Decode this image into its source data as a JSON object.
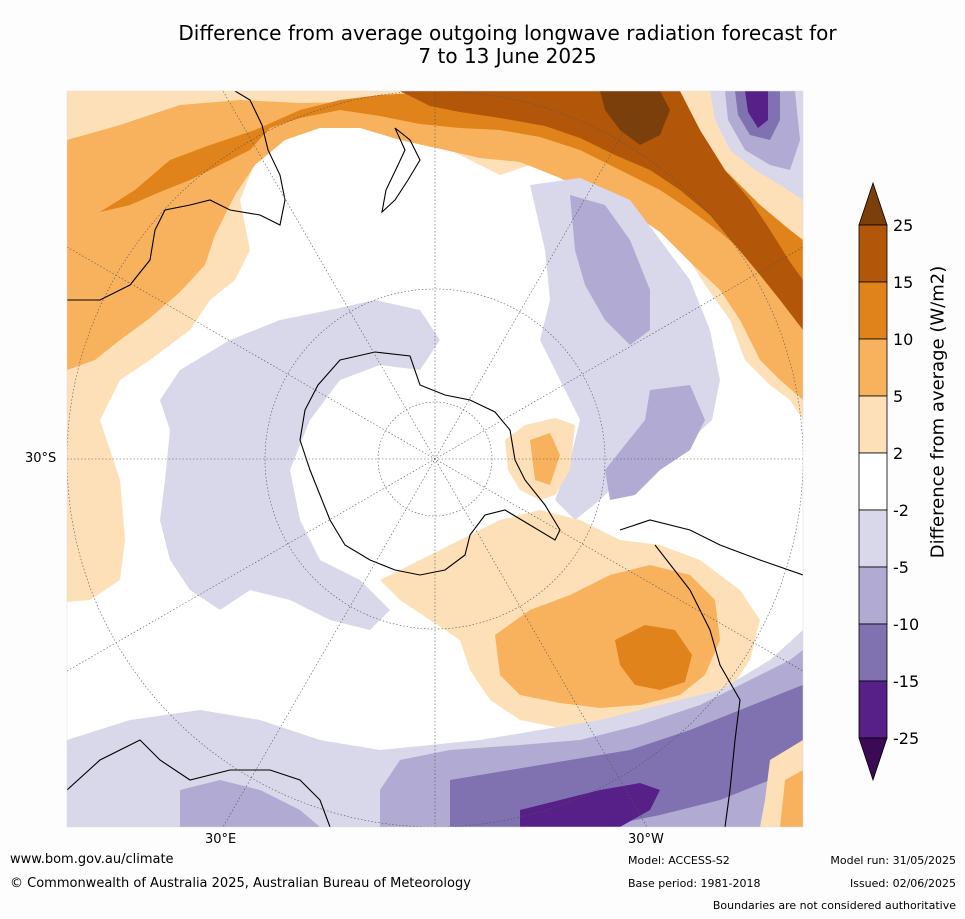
{
  "title_line1": "Difference from average outgoing longwave radiation forecast for",
  "title_line2": "7 to 13 June 2025",
  "axis": {
    "lat_label": "30°S",
    "lon_label_left": "30°E",
    "lon_label_right": "30°W"
  },
  "colorbar": {
    "label": "Difference from average (W/m2)",
    "ticks": [
      "25",
      "15",
      "10",
      "5",
      "2",
      "-2",
      "-5",
      "-10",
      "-15",
      "-25"
    ],
    "colors": {
      "above_25": "#7a3f0a",
      "15_25": "#b2560a",
      "10_15": "#e0831a",
      "5_10": "#f8b25e",
      "2_5": "#fde0b8",
      "neutral": "#ffffff",
      "m5_m2": "#d8d8ea",
      "m10_m5": "#b1aad2",
      "m15_m10": "#8072b0",
      "m25_m15": "#562088",
      "below_m25": "#3b0a55"
    }
  },
  "footer": {
    "website": "www.bom.gov.au/climate",
    "copyright": "© Commonwealth of Australia 2025, Australian Bureau of Meteorology",
    "model": "Model: ACCESS-S2",
    "base_period": "Base period: 1981-2018",
    "model_run": "Model run: 31/05/2025",
    "issued": "Issued: 02/06/2025",
    "disclaimer": "Boundaries are not considered authoritative"
  }
}
